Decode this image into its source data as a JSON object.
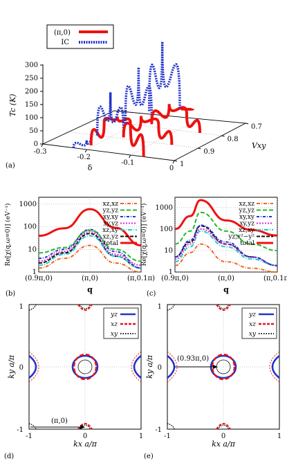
{
  "panel_a": {
    "label": "(a)",
    "legend": [
      {
        "label": "(π,0)",
        "color": "#ee1111",
        "style": "solid"
      },
      {
        "label": "IC",
        "color": "#2233cc",
        "style": "dotted"
      }
    ],
    "z_label": "Tc (K)",
    "z_ticks": [
      "0",
      "50",
      "100",
      "150",
      "200",
      "250",
      "300"
    ],
    "delta_label": "δ",
    "delta_ticks": [
      "-0.3",
      "-0.2",
      "-0.1",
      "0"
    ],
    "vxy_label": "Vxy",
    "vxy_ticks": [
      "1",
      "0.9",
      "0.8",
      "0.7"
    ],
    "curves": [
      {
        "vxy": 1.0,
        "ic": [
          [
            -0.23,
            0
          ],
          [
            -0.2,
            35
          ],
          [
            -0.19,
            18
          ]
        ],
        "pi0": [
          [
            -0.19,
            18
          ],
          [
            -0.16,
            115
          ],
          [
            -0.13,
            140
          ],
          [
            -0.1,
            120
          ],
          [
            -0.07,
            0
          ]
        ]
      },
      {
        "vxy": 0.9,
        "ic": [
          [
            -0.23,
            0
          ],
          [
            -0.2,
            170
          ],
          [
            -0.17,
            5
          ]
        ],
        "pi0": [
          [
            -0.17,
            5
          ],
          [
            -0.13,
            95
          ],
          [
            -0.09,
            70
          ],
          [
            -0.06,
            0
          ]
        ]
      },
      {
        "vxy": 0.8,
        "ic": [
          [
            -0.22,
            0
          ],
          [
            -0.19,
            220
          ],
          [
            -0.16,
            10
          ]
        ],
        "pi0": [
          [
            -0.16,
            10
          ],
          [
            -0.12,
            95
          ],
          [
            -0.08,
            65
          ],
          [
            -0.05,
            0
          ]
        ]
      },
      {
        "vxy": 0.7,
        "ic": [
          [
            -0.22,
            0
          ],
          [
            -0.19,
            270
          ],
          [
            -0.15,
            20
          ]
        ],
        "pi0": [
          [
            -0.15,
            20
          ],
          [
            -0.12,
            30
          ]
        ]
      }
    ]
  },
  "panel_b": {
    "label": "(b)",
    "ylabel": "Re[χ(q,ω=0)] (eV⁻¹)",
    "xlabel": "q",
    "x_ticks": [
      "(0.9π,0)",
      "(π,0)",
      "(π,0.1π)"
    ],
    "y_ticks": [
      "1",
      "10",
      "100",
      "1000"
    ],
    "legend": [
      "xz,xz",
      "yz,yz",
      "xy,xy",
      "xy,yz",
      "xz,xy",
      "xz,yz",
      "total"
    ]
  },
  "panel_c": {
    "label": "(c)",
    "ylabel": "Re[χ(q,ω=0)] (eV⁻¹)",
    "xlabel": "q",
    "x_ticks": [
      "(0.9π,0)",
      "(π,0)",
      "(π,0.1π)"
    ],
    "y_ticks": [
      "1",
      "10",
      "100",
      "1000"
    ],
    "legend": [
      "xz,xz",
      "yz,yz",
      "xy,xy",
      "xy,yz",
      "xz,xy",
      "yz,x²−y²",
      "total"
    ]
  },
  "chart_data": [
    {
      "type": "line",
      "title": "",
      "xlabel": "q",
      "ylabel": "Re[χ(q,ω=0)] (eV⁻¹)",
      "yscale": "log",
      "ylim": [
        1,
        2000
      ],
      "x_positions": [
        "(0.9π,0)",
        "(π,0)",
        "(π,0.1π)"
      ],
      "series": [
        {
          "name": "total",
          "color": "#ee1111",
          "x": [
            0,
            0.25,
            0.5,
            0.75,
            1.0
          ],
          "values": [
            40,
            85,
            600,
            90,
            15
          ]
        },
        {
          "name": "yz,yz",
          "color": "#22bb22",
          "x": [
            0,
            0.25,
            0.5,
            0.75,
            1.0
          ],
          "values": [
            7,
            12,
            70,
            10,
            3
          ]
        },
        {
          "name": "xy,xy",
          "color": "#2233cc",
          "x": [
            0,
            0.25,
            0.5,
            0.75,
            1.0
          ],
          "values": [
            4,
            10,
            75,
            8,
            1.5
          ]
        },
        {
          "name": "xy,yz",
          "color": "#dd22dd",
          "x": [
            0,
            0.25,
            0.5,
            0.75,
            1.0
          ],
          "values": [
            3,
            8,
            60,
            6,
            2
          ]
        },
        {
          "name": "xz,xy",
          "color": "#22cccc",
          "x": [
            0,
            0.25,
            0.5,
            0.75,
            1.0
          ],
          "values": [
            2,
            6,
            40,
            5,
            1.5
          ]
        },
        {
          "name": "xz,yz",
          "color": "#111111",
          "x": [
            0,
            0.25,
            0.5,
            0.75,
            1.0
          ],
          "values": [
            2.5,
            7,
            50,
            5,
            1.5
          ]
        },
        {
          "name": "xz,xz",
          "color": "#ee6622",
          "x": [
            0,
            0.25,
            0.5,
            0.75,
            1.0
          ],
          "values": [
            1.5,
            4,
            15,
            2.5,
            1
          ]
        }
      ]
    },
    {
      "type": "line",
      "title": "",
      "xlabel": "q",
      "ylabel": "Re[χ(q,ω=0)] (eV⁻¹)",
      "yscale": "log",
      "ylim": [
        1,
        3000
      ],
      "x_positions": [
        "(0.9π,0)",
        "(π,0)",
        "(π,0.1π)"
      ],
      "series": [
        {
          "name": "total",
          "color": "#ee1111",
          "x": [
            0,
            0.15,
            0.25,
            0.5,
            0.75,
            1.0
          ],
          "values": [
            100,
            400,
            2200,
            250,
            90,
            50
          ]
        },
        {
          "name": "yz,yz",
          "color": "#22bb22",
          "x": [
            0,
            0.15,
            0.25,
            0.5,
            0.75,
            1.0
          ],
          "values": [
            20,
            80,
            600,
            80,
            20,
            10
          ]
        },
        {
          "name": "xy,xy",
          "color": "#2233cc",
          "x": [
            0,
            0.15,
            0.25,
            0.5,
            0.75,
            1.0
          ],
          "values": [
            5,
            30,
            150,
            25,
            5,
            2
          ]
        },
        {
          "name": "xy,yz",
          "color": "#dd22dd",
          "x": [
            0,
            0.15,
            0.25,
            0.5,
            0.75,
            1.0
          ],
          "values": [
            4,
            20,
            100,
            20,
            5,
            2
          ]
        },
        {
          "name": "xz,xy",
          "color": "#22cccc",
          "x": [
            0,
            0.15,
            0.25,
            0.5,
            0.75,
            1.0
          ],
          "values": [
            3,
            15,
            80,
            15,
            4,
            2
          ]
        },
        {
          "name": "yz,x²−y²",
          "color": "#111111",
          "x": [
            0,
            0.15,
            0.25,
            0.5,
            0.75,
            1.0
          ],
          "values": [
            5,
            25,
            140,
            20,
            5,
            2
          ]
        },
        {
          "name": "xz,xz",
          "color": "#ee6622",
          "x": [
            0,
            0.15,
            0.25,
            0.5,
            0.75,
            1.0
          ],
          "values": [
            2,
            8,
            20,
            3,
            1.5,
            1
          ]
        }
      ]
    }
  ],
  "panel_d": {
    "label": "(d)",
    "xlabel": "kx a/π",
    "ylabel": "ky a/π",
    "ticks": [
      "-1",
      "0",
      "1"
    ],
    "legend": [
      {
        "label": "yz",
        "color": "#2233cc"
      },
      {
        "label": "xz",
        "color": "#ee1111"
      },
      {
        "label": "xy",
        "color": "#111111"
      }
    ],
    "arrow_label": "(π,0)"
  },
  "panel_e": {
    "label": "(e)",
    "xlabel": "kx a/π",
    "ylabel": "ky a/π",
    "ticks": [
      "-1",
      "0",
      "1"
    ],
    "legend": [
      {
        "label": "yz",
        "color": "#2233cc"
      },
      {
        "label": "xz",
        "color": "#ee1111"
      },
      {
        "label": "xy",
        "color": "#111111"
      }
    ],
    "arrow_label": "(0.93π,0)"
  }
}
